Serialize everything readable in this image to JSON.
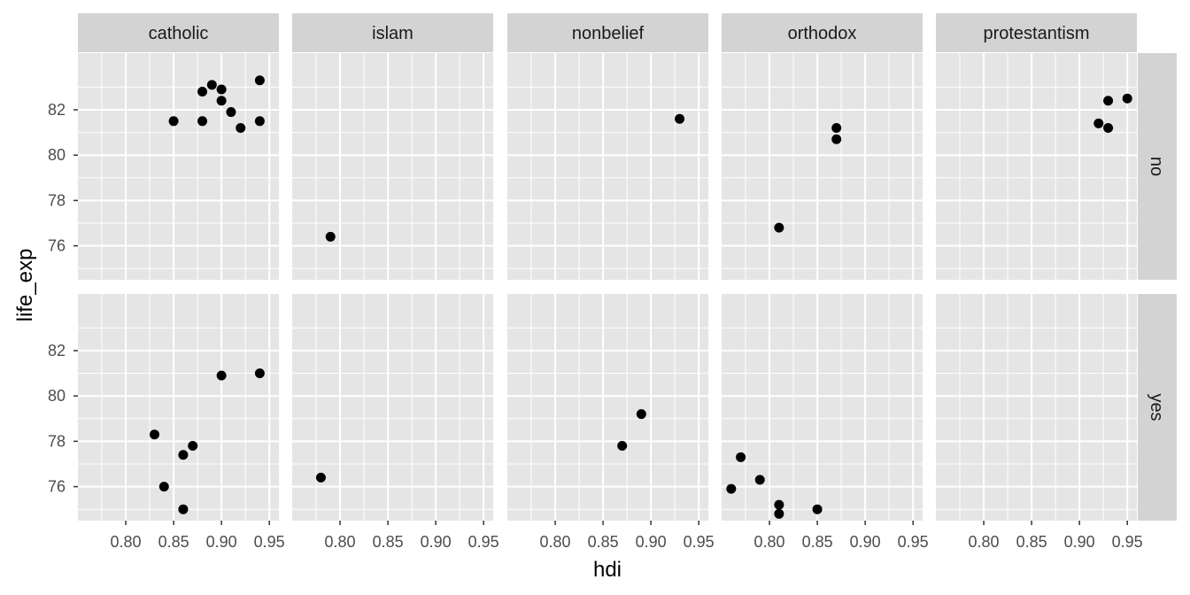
{
  "chart_data": {
    "type": "scatter",
    "xlabel": "hdi",
    "ylabel": "life_exp",
    "col_facets": [
      "catholic",
      "islam",
      "nonbelief",
      "orthodox",
      "protestantism"
    ],
    "row_facets": [
      "no",
      "yes"
    ],
    "xlim": [
      0.75,
      0.96
    ],
    "ylim": [
      74.5,
      84.5
    ],
    "x_ticks": [
      0.8,
      0.85,
      0.9,
      0.95
    ],
    "x_tick_labels": [
      "0.80",
      "0.85",
      "0.90",
      "0.95"
    ],
    "y_ticks": [
      76,
      78,
      80,
      82
    ],
    "y_tick_labels": [
      "76",
      "78",
      "80",
      "82"
    ],
    "grid": true,
    "colors": {
      "panel_background": "#e5e5e5",
      "grid_line": "#ffffff",
      "strip_background": "#d3d3d3",
      "point": "#000000"
    },
    "points": [
      {
        "row": "no",
        "col": "catholic",
        "x": 0.85,
        "y": 81.5
      },
      {
        "row": "no",
        "col": "catholic",
        "x": 0.88,
        "y": 82.8
      },
      {
        "row": "no",
        "col": "catholic",
        "x": 0.88,
        "y": 81.5
      },
      {
        "row": "no",
        "col": "catholic",
        "x": 0.89,
        "y": 83.1
      },
      {
        "row": "no",
        "col": "catholic",
        "x": 0.9,
        "y": 82.9
      },
      {
        "row": "no",
        "col": "catholic",
        "x": 0.9,
        "y": 82.4
      },
      {
        "row": "no",
        "col": "catholic",
        "x": 0.91,
        "y": 81.9
      },
      {
        "row": "no",
        "col": "catholic",
        "x": 0.92,
        "y": 81.2
      },
      {
        "row": "no",
        "col": "catholic",
        "x": 0.94,
        "y": 83.3
      },
      {
        "row": "no",
        "col": "catholic",
        "x": 0.94,
        "y": 81.5
      },
      {
        "row": "no",
        "col": "islam",
        "x": 0.79,
        "y": 76.4
      },
      {
        "row": "no",
        "col": "nonbelief",
        "x": 0.93,
        "y": 81.6
      },
      {
        "row": "no",
        "col": "orthodox",
        "x": 0.81,
        "y": 76.8
      },
      {
        "row": "no",
        "col": "orthodox",
        "x": 0.87,
        "y": 81.2
      },
      {
        "row": "no",
        "col": "orthodox",
        "x": 0.87,
        "y": 80.7
      },
      {
        "row": "no",
        "col": "protestantism",
        "x": 0.92,
        "y": 81.4
      },
      {
        "row": "no",
        "col": "protestantism",
        "x": 0.93,
        "y": 82.4
      },
      {
        "row": "no",
        "col": "protestantism",
        "x": 0.93,
        "y": 81.2
      },
      {
        "row": "no",
        "col": "protestantism",
        "x": 0.95,
        "y": 82.5
      },
      {
        "row": "yes",
        "col": "catholic",
        "x": 0.83,
        "y": 78.3
      },
      {
        "row": "yes",
        "col": "catholic",
        "x": 0.84,
        "y": 76.0
      },
      {
        "row": "yes",
        "col": "catholic",
        "x": 0.86,
        "y": 77.4
      },
      {
        "row": "yes",
        "col": "catholic",
        "x": 0.86,
        "y": 75.0
      },
      {
        "row": "yes",
        "col": "catholic",
        "x": 0.87,
        "y": 77.8
      },
      {
        "row": "yes",
        "col": "catholic",
        "x": 0.9,
        "y": 80.9
      },
      {
        "row": "yes",
        "col": "catholic",
        "x": 0.94,
        "y": 81.0
      },
      {
        "row": "yes",
        "col": "islam",
        "x": 0.78,
        "y": 76.4
      },
      {
        "row": "yes",
        "col": "nonbelief",
        "x": 0.87,
        "y": 77.8
      },
      {
        "row": "yes",
        "col": "nonbelief",
        "x": 0.89,
        "y": 79.2
      },
      {
        "row": "yes",
        "col": "orthodox",
        "x": 0.76,
        "y": 75.9
      },
      {
        "row": "yes",
        "col": "orthodox",
        "x": 0.77,
        "y": 77.3
      },
      {
        "row": "yes",
        "col": "orthodox",
        "x": 0.79,
        "y": 76.3
      },
      {
        "row": "yes",
        "col": "orthodox",
        "x": 0.81,
        "y": 75.2
      },
      {
        "row": "yes",
        "col": "orthodox",
        "x": 0.81,
        "y": 74.8
      },
      {
        "row": "yes",
        "col": "orthodox",
        "x": 0.85,
        "y": 75.0
      }
    ]
  }
}
